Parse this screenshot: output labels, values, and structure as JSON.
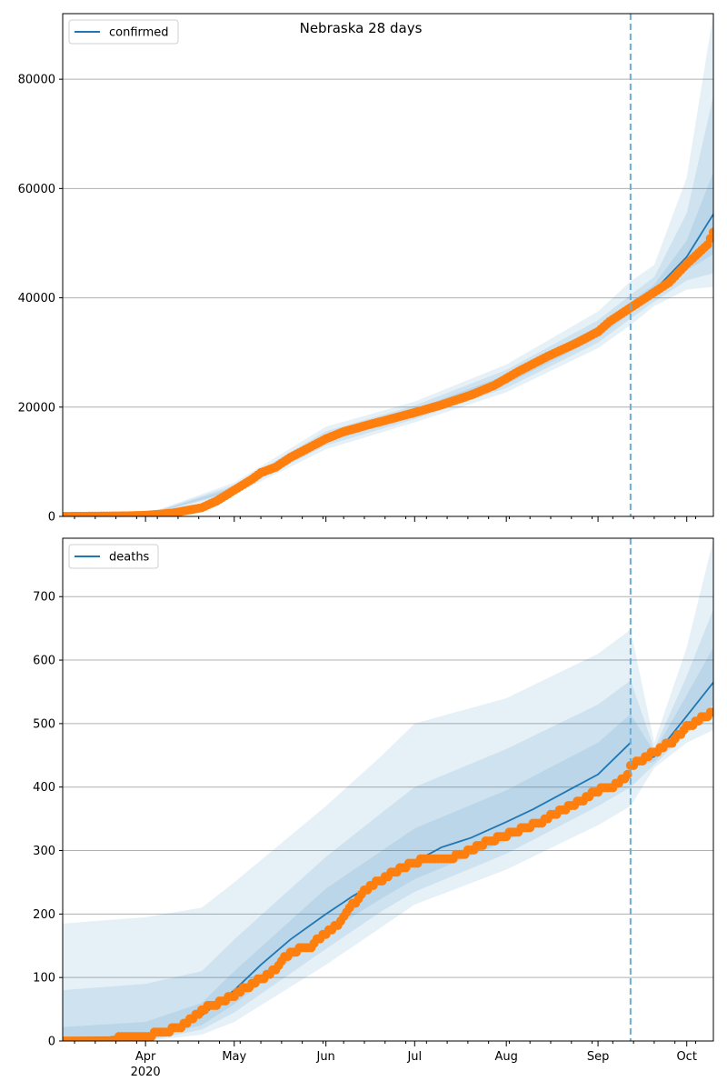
{
  "title": "Nebraska 28 days",
  "colors": {
    "model": "#1f77b4",
    "observed": "#ff7f0e",
    "band": "#1f77b4",
    "forecast_line": "#6baed6",
    "grid": "#b0b0b0"
  },
  "x_ticks": [
    {
      "label": "Apr",
      "sub": "2020",
      "date": "2020-04-01"
    },
    {
      "label": "May",
      "sub": "",
      "date": "2020-05-01"
    },
    {
      "label": "Jun",
      "sub": "",
      "date": "2020-06-01"
    },
    {
      "label": "Jul",
      "sub": "",
      "date": "2020-07-01"
    },
    {
      "label": "Aug",
      "sub": "",
      "date": "2020-08-01"
    },
    {
      "label": "Sep",
      "sub": "",
      "date": "2020-09-01"
    },
    {
      "label": "Oct",
      "sub": "",
      "date": "2020-10-01"
    }
  ],
  "chart_data": [
    {
      "type": "line",
      "legend": "confirmed",
      "legend_position": "top-left",
      "grid": "y",
      "xlim": [
        "2020-03-04",
        "2020-10-10"
      ],
      "ylim": [
        0,
        92000
      ],
      "y_ticks": [
        0,
        20000,
        40000,
        60000,
        80000
      ],
      "forecast_start": "2020-09-12",
      "model": {
        "x": [
          "2020-03-04",
          "2020-03-20",
          "2020-04-01",
          "2020-04-10",
          "2020-04-20",
          "2020-05-01",
          "2020-05-10",
          "2020-05-20",
          "2020-06-01",
          "2020-06-10",
          "2020-06-20",
          "2020-07-01",
          "2020-07-10",
          "2020-07-20",
          "2020-08-01",
          "2020-08-10",
          "2020-08-20",
          "2020-09-01",
          "2020-09-12",
          "2020-09-20",
          "2020-10-01",
          "2020-10-10"
        ],
        "y": [
          0,
          50,
          250,
          800,
          2200,
          5000,
          8000,
          11000,
          14300,
          16000,
          17300,
          19000,
          20200,
          22000,
          25000,
          27500,
          30200,
          33800,
          38200,
          41300,
          47500,
          55300
        ]
      },
      "bands": [
        {
          "x": [
            "2020-03-04",
            "2020-04-01",
            "2020-05-01",
            "2020-06-01",
            "2020-07-01",
            "2020-08-01",
            "2020-09-01",
            "2020-09-12",
            "2020-09-20",
            "2020-10-01",
            "2020-10-10"
          ],
          "lower": [
            0,
            150,
            4000,
            12300,
            17200,
            22700,
            30800,
            35000,
            38500,
            41500,
            42000
          ],
          "upper": [
            0,
            400,
            6200,
            16400,
            21000,
            27800,
            37500,
            43000,
            46000,
            62000,
            92000
          ]
        },
        {
          "x": [
            "2020-03-04",
            "2020-04-01",
            "2020-05-01",
            "2020-06-01",
            "2020-07-01",
            "2020-08-01",
            "2020-09-01",
            "2020-09-12",
            "2020-09-20",
            "2020-10-01",
            "2020-10-10"
          ],
          "lower": [
            0,
            190,
            4400,
            13000,
            17800,
            23500,
            31800,
            36200,
            39300,
            43200,
            44500
          ],
          "upper": [
            0,
            330,
            5700,
            15600,
            20300,
            26800,
            35900,
            40500,
            43800,
            55500,
            77000
          ]
        },
        {
          "x": [
            "2020-03-04",
            "2020-04-01",
            "2020-05-01",
            "2020-06-01",
            "2020-07-01",
            "2020-08-01",
            "2020-09-01",
            "2020-09-12",
            "2020-09-20",
            "2020-10-01",
            "2020-10-10"
          ],
          "lower": [
            0,
            220,
            4700,
            13600,
            18400,
            24200,
            32700,
            37200,
            40200,
            45000,
            48000
          ],
          "upper": [
            0,
            290,
            5300,
            15000,
            19600,
            25900,
            34800,
            39200,
            42400,
            50500,
            63000
          ]
        }
      ],
      "observed": {
        "x": [
          "2020-03-04",
          "2020-03-15",
          "2020-03-25",
          "2020-04-01",
          "2020-04-10",
          "2020-04-20",
          "2020-04-25",
          "2020-05-01",
          "2020-05-07",
          "2020-05-10",
          "2020-05-15",
          "2020-05-20",
          "2020-05-25",
          "2020-06-01",
          "2020-06-07",
          "2020-06-15",
          "2020-06-22",
          "2020-07-01",
          "2020-07-10",
          "2020-07-20",
          "2020-07-28",
          "2020-08-05",
          "2020-08-15",
          "2020-08-25",
          "2020-09-01",
          "2020-09-05",
          "2020-09-12",
          "2020-09-18",
          "2020-09-25",
          "2020-10-01",
          "2020-10-05",
          "2020-10-08",
          "2020-10-10"
        ],
        "y": [
          0,
          40,
          100,
          200,
          600,
          1600,
          2800,
          4800,
          6800,
          8000,
          9000,
          10800,
          12200,
          14200,
          15500,
          16700,
          17700,
          19000,
          20400,
          22200,
          24000,
          26500,
          29300,
          31800,
          33800,
          35700,
          38200,
          40300,
          42800,
          46200,
          48200,
          49700,
          52000
        ]
      }
    },
    {
      "type": "line",
      "legend": "deaths",
      "legend_position": "top-left",
      "grid": "y",
      "xlim": [
        "2020-03-04",
        "2020-10-10"
      ],
      "ylim": [
        0,
        792
      ],
      "y_ticks": [
        0,
        100,
        200,
        300,
        400,
        500,
        600,
        700
      ],
      "forecast_start": "2020-09-12",
      "model": {
        "x": [
          "2020-03-04",
          "2020-03-20",
          "2020-04-01",
          "2020-04-10",
          "2020-04-20",
          "2020-05-01",
          "2020-05-10",
          "2020-05-20",
          "2020-06-01",
          "2020-06-10",
          "2020-06-20",
          "2020-07-01",
          "2020-07-10",
          "2020-07-20",
          "2020-08-01",
          "2020-08-10",
          "2020-08-20",
          "2020-09-01",
          "2020-09-12",
          "2020-09-20",
          "2020-10-01",
          "2020-10-10"
        ],
        "y": [
          5,
          6,
          10,
          20,
          40,
          80,
          120,
          160,
          200,
          228,
          255,
          282,
          305,
          320,
          345,
          365,
          390,
          420,
          470,
          448,
          512,
          565
        ]
      },
      "bands": [
        {
          "x": [
            "2020-03-04",
            "2020-04-01",
            "2020-04-20",
            "2020-05-01",
            "2020-06-01",
            "2020-06-20",
            "2020-07-01",
            "2020-08-01",
            "2020-09-01",
            "2020-09-12",
            "2020-09-20",
            "2020-10-01",
            "2020-10-10"
          ],
          "lower": [
            0,
            0,
            10,
            30,
            120,
            180,
            215,
            270,
            340,
            370,
            430,
            470,
            490
          ],
          "upper": [
            185,
            195,
            210,
            250,
            370,
            450,
            500,
            540,
            610,
            648,
            470,
            620,
            790
          ]
        },
        {
          "x": [
            "2020-03-04",
            "2020-04-01",
            "2020-04-20",
            "2020-05-01",
            "2020-06-01",
            "2020-06-20",
            "2020-07-01",
            "2020-08-01",
            "2020-09-01",
            "2020-09-12",
            "2020-09-20",
            "2020-10-01",
            "2020-10-10"
          ],
          "lower": [
            0,
            0,
            18,
            45,
            145,
            205,
            235,
            295,
            370,
            400,
            435,
            485,
            510
          ],
          "upper": [
            80,
            90,
            110,
            160,
            290,
            360,
            400,
            460,
            530,
            568,
            460,
            575,
            680
          ]
        },
        {
          "x": [
            "2020-03-04",
            "2020-04-01",
            "2020-04-20",
            "2020-05-01",
            "2020-06-01",
            "2020-06-20",
            "2020-07-01",
            "2020-08-01",
            "2020-09-01",
            "2020-09-12",
            "2020-09-20",
            "2020-10-01",
            "2020-10-10"
          ],
          "lower": [
            0,
            2,
            25,
            58,
            170,
            225,
            255,
            315,
            390,
            430,
            440,
            495,
            530
          ],
          "upper": [
            22,
            30,
            60,
            110,
            240,
            300,
            335,
            395,
            470,
            515,
            455,
            545,
            620
          ]
        }
      ],
      "observed": {
        "x": [
          "2020-03-04",
          "2020-03-20",
          "2020-03-30",
          "2020-04-05",
          "2020-04-10",
          "2020-04-15",
          "2020-04-20",
          "2020-04-25",
          "2020-05-01",
          "2020-05-07",
          "2020-05-13",
          "2020-05-20",
          "2020-05-27",
          "2020-06-01",
          "2020-06-06",
          "2020-06-10",
          "2020-06-15",
          "2020-06-20",
          "2020-06-25",
          "2020-07-01",
          "2020-07-05",
          "2020-07-12",
          "2020-07-20",
          "2020-07-25",
          "2020-08-01",
          "2020-08-07",
          "2020-08-13",
          "2020-08-20",
          "2020-08-26",
          "2020-09-01",
          "2020-09-08",
          "2020-09-11",
          "2020-09-12",
          "2020-09-15",
          "2020-09-20",
          "2020-09-26",
          "2020-10-01",
          "2020-10-05",
          "2020-10-10"
        ],
        "y": [
          3,
          3,
          5,
          12,
          18,
          27,
          50,
          57,
          72,
          90,
          105,
          140,
          150,
          170,
          188,
          215,
          240,
          255,
          268,
          282,
          285,
          285,
          300,
          312,
          325,
          335,
          345,
          365,
          378,
          395,
          405,
          420,
          435,
          440,
          455,
          472,
          495,
          505,
          520
        ]
      }
    }
  ]
}
